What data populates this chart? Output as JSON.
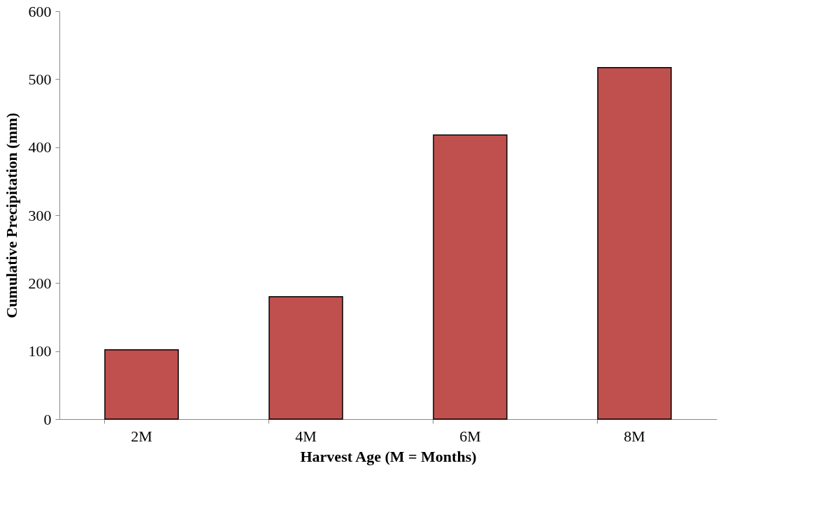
{
  "chart_data": {
    "type": "bar",
    "xlabel": "Harvest Age (M = Months)",
    "ylabel": "Cumulative Precipitation (mm)",
    "categories": [
      "2M",
      "4M",
      "6M",
      "8M"
    ],
    "series": [
      {
        "color": "#c0504d",
        "values": [
          102,
          180,
          418,
          517
        ]
      }
    ],
    "ylim": [
      0,
      600
    ],
    "yticks": [
      0,
      100,
      200,
      300,
      400,
      500,
      600
    ],
    "grid": false
  }
}
